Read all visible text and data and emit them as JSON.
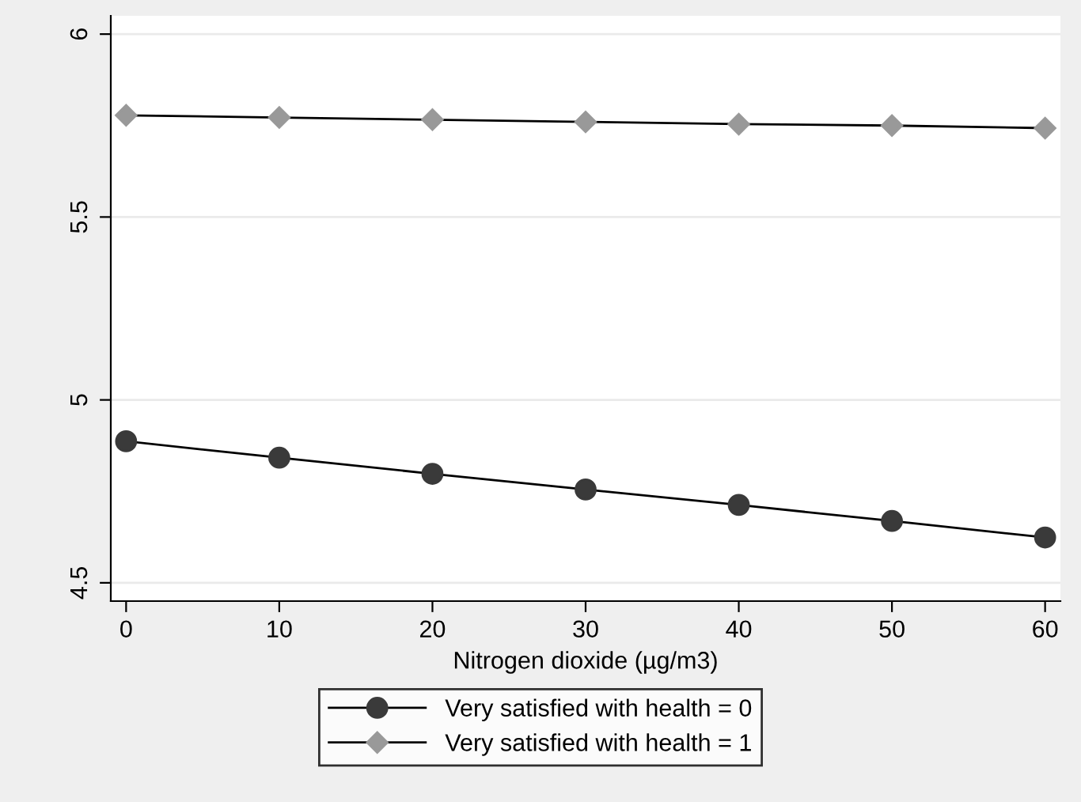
{
  "chart_data": {
    "type": "line",
    "xlabel": "Nitrogen dioxide (µg/m3)",
    "x": [
      0,
      10,
      20,
      30,
      40,
      50,
      60
    ],
    "series": [
      {
        "name": "Very satisfied with health = 0",
        "color": "#3a3a3a",
        "marker": "circle",
        "values": [
          4.887,
          4.842,
          4.798,
          4.755,
          4.713,
          4.669,
          4.624
        ]
      },
      {
        "name": "Very satisfied with health = 1",
        "color": "#999999",
        "marker": "diamond",
        "values": [
          5.778,
          5.772,
          5.766,
          5.76,
          5.754,
          5.75,
          5.743
        ]
      }
    ],
    "xlim": [
      -1,
      61
    ],
    "ylim": [
      4.45,
      6.05
    ],
    "xticks": [
      0,
      10,
      20,
      30,
      40,
      50,
      60
    ],
    "yticks": [
      4.5,
      5,
      5.5,
      6
    ],
    "grid": "y",
    "legend": "bottom",
    "line_style": "solid"
  }
}
